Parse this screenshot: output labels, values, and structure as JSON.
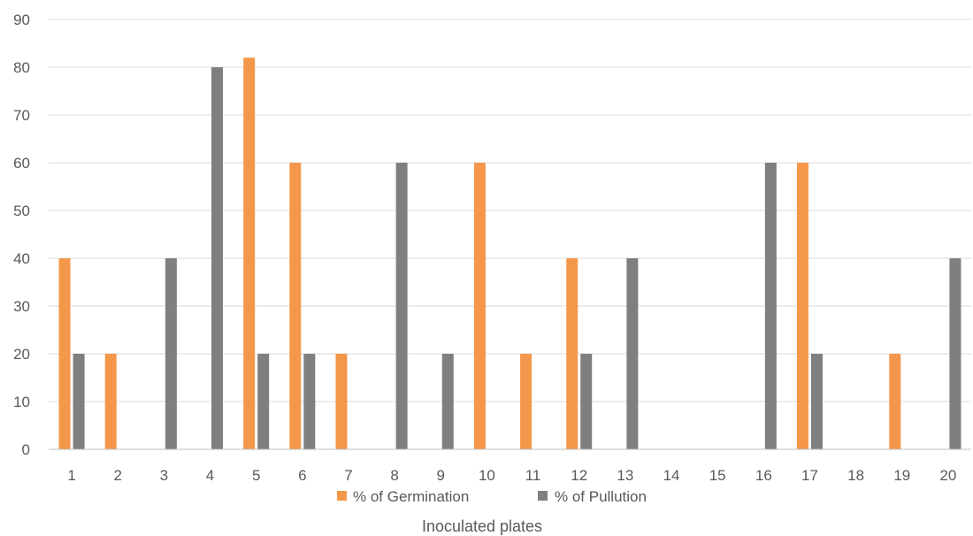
{
  "chart_data": {
    "type": "bar",
    "title": "",
    "xlabel": "Inoculated plates",
    "ylabel": "",
    "ylim": [
      0,
      90
    ],
    "yticks": [
      0,
      10,
      20,
      30,
      40,
      50,
      60,
      70,
      80,
      90
    ],
    "grid": true,
    "legend_position": "bottom",
    "categories": [
      "1",
      "2",
      "3",
      "4",
      "5",
      "6",
      "7",
      "8",
      "9",
      "10",
      "11",
      "12",
      "13",
      "14",
      "15",
      "16",
      "17",
      "18",
      "19",
      "20"
    ],
    "series": [
      {
        "name": "% of Germination",
        "color": "#F4974A",
        "values": [
          40,
          20,
          0,
          0,
          82,
          60,
          20,
          0,
          0,
          60,
          20,
          40,
          0,
          0,
          0,
          0,
          60,
          0,
          20,
          0
        ]
      },
      {
        "name": "% of Pullution",
        "color": "#7F7F7F",
        "values": [
          20,
          0,
          40,
          80,
          20,
          20,
          0,
          60,
          20,
          0,
          0,
          20,
          40,
          0,
          0,
          60,
          20,
          0,
          0,
          40
        ]
      }
    ]
  }
}
